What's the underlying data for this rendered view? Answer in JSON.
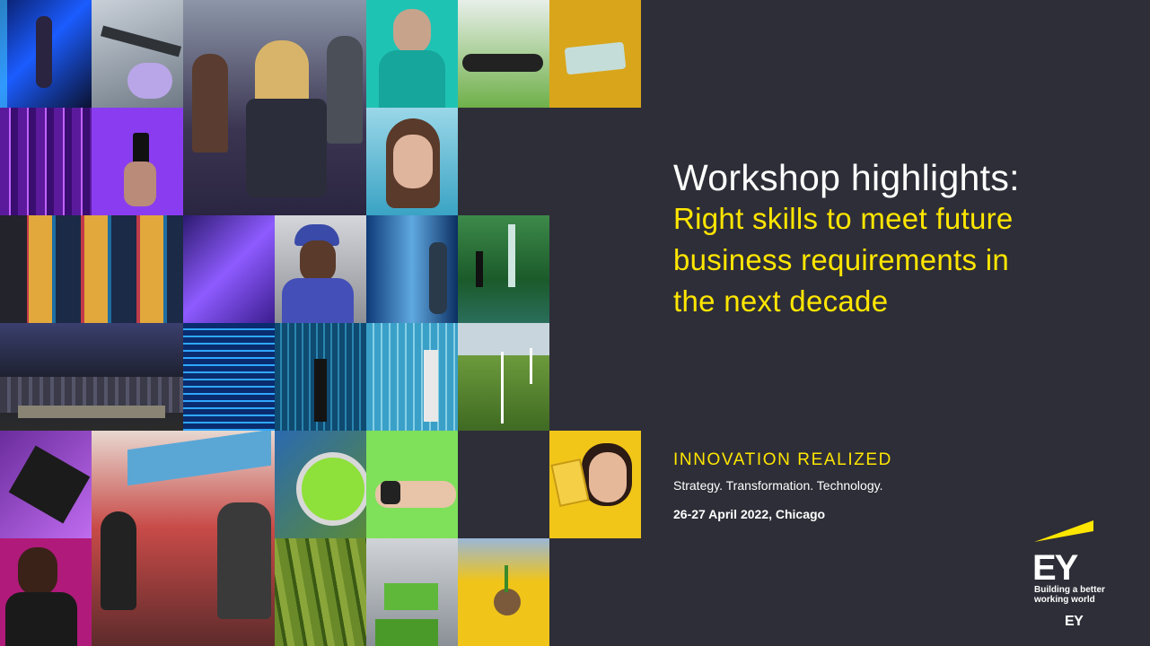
{
  "slide": {
    "title": "Workshop highlights:",
    "subtitle_lines": [
      "Right skills to meet future",
      "business requirements in",
      "the next decade"
    ]
  },
  "event": {
    "name": "INNOVATION REALIZED",
    "tagline": "Strategy. Transformation. Technology.",
    "date_location": "26-27 April 2022, Chicago"
  },
  "brand": {
    "logo_text": "EY",
    "tagline": "Building a better working world",
    "footer_mark": "EY",
    "accent_color": "#ffe600",
    "background_color": "#2e2e38"
  },
  "mosaic": {
    "photo_icons": [
      "neon-tunnel-photo",
      "lab-caliper-photo",
      "stage-audience-photo",
      "masked-man-photo",
      "smartphone-hand-photo",
      "yellow-phone-photo",
      "purple-server-photo",
      "phone-glow-photo",
      "woman-goggles-photo",
      "movie-posters-photo",
      "purple-wave-photo",
      "worker-helmet-photo",
      "datacenter-photo",
      "waterfall-photo",
      "concert-crowd-photo",
      "blue-lights-photo",
      "anechoic-chamber-photo",
      "engineer-tripod-photo",
      "wind-farm-photo",
      "laptop-typing-photo",
      "lounge-discussion-photo",
      "water-treatment-photo",
      "smartwatch-photo",
      "woman-card-photo",
      "woman-tablet-photo",
      "pellets-photo",
      "green-roof-photo",
      "seedling-hands-photo"
    ]
  }
}
